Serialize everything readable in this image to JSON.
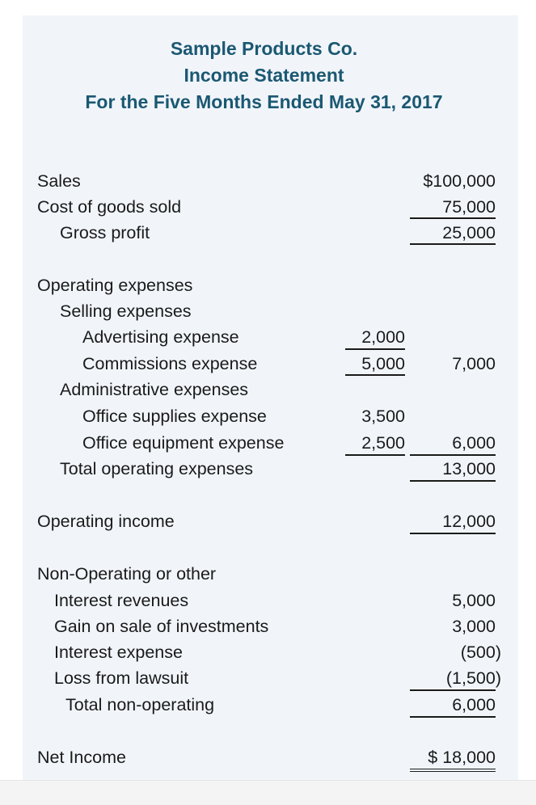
{
  "header": {
    "company": "Sample Products Co.",
    "statement": "Income Statement",
    "period": "For the Five Months Ended May 31, 2017"
  },
  "rows": [
    {
      "label": "Sales",
      "col2": "$100,000"
    },
    {
      "label": "Cost of goods sold",
      "col2": "75,000"
    },
    {
      "label": "Gross profit",
      "col2": "25,000"
    },
    {
      "label": "Operating expenses"
    },
    {
      "label": "Selling expenses"
    },
    {
      "label": "Advertising expense",
      "col1": "2,000"
    },
    {
      "label": "Commissions expense",
      "col1": "5,000",
      "col2": "7,000"
    },
    {
      "label": "Administrative expenses"
    },
    {
      "label": "Office supplies expense",
      "col1": "3,500"
    },
    {
      "label": "Office equipment expense",
      "col1": "2,500",
      "col2": "6,000"
    },
    {
      "label": "Total operating expenses",
      "col2": "13,000"
    },
    {
      "label": "Operating income",
      "col2": "12,000"
    },
    {
      "label": "Non-Operating or other"
    },
    {
      "label": "Interest revenues",
      "col2": "5,000"
    },
    {
      "label": "Gain on sale of investments",
      "col2": "3,000"
    },
    {
      "label": "Interest expense",
      "col2": "(500)"
    },
    {
      "label": "Loss from lawsuit",
      "col2": "(1,500)"
    },
    {
      "label": "Total non-operating",
      "col2": "6,000"
    },
    {
      "label": "Net Income",
      "col2": "$ 18,000"
    }
  ]
}
